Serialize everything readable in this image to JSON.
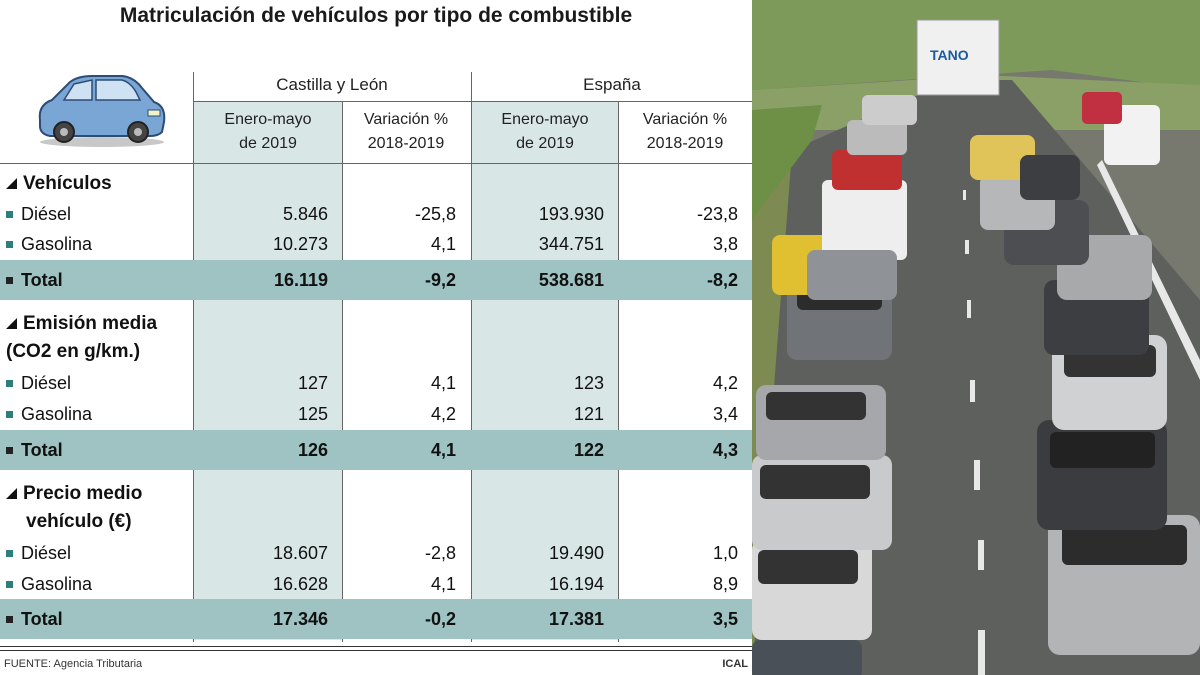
{
  "title": "Matriculación de vehículos por tipo de combustible",
  "groups": {
    "cyl": "Castilla y León",
    "esp": "España"
  },
  "subheaders": {
    "period_line1": "Enero-mayo",
    "period_line2": "de 2019",
    "var_line1": "Variación %",
    "var_line2": "2018-2019"
  },
  "sections": [
    {
      "title_line1": "Vehículos",
      "title_line2": "",
      "rows": [
        {
          "label": "Diésel",
          "cyl_val": "5.846",
          "cyl_var": "-25,8",
          "esp_val": "193.930",
          "esp_var": "-23,8"
        },
        {
          "label": "Gasolina",
          "cyl_val": "10.273",
          "cyl_var": "4,1",
          "esp_val": "344.751",
          "esp_var": "3,8"
        }
      ],
      "total": {
        "label": "Total",
        "cyl_val": "16.119",
        "cyl_var": "-9,2",
        "esp_val": "538.681",
        "esp_var": "-8,2"
      }
    },
    {
      "title_line1": "Emisión media",
      "title_line2": "(CO2 en g/km.)",
      "rows": [
        {
          "label": "Diésel",
          "cyl_val": "127",
          "cyl_var": "4,1",
          "esp_val": "123",
          "esp_var": "4,2"
        },
        {
          "label": "Gasolina",
          "cyl_val": "125",
          "cyl_var": "4,2",
          "esp_val": "121",
          "esp_var": "3,4"
        }
      ],
      "total": {
        "label": "Total",
        "cyl_val": "126",
        "cyl_var": "4,1",
        "esp_val": "122",
        "esp_var": "4,3"
      }
    },
    {
      "title_line1": "Precio medio",
      "title_line2": "vehículo (€)",
      "rows": [
        {
          "label": "Diésel",
          "cyl_val": "18.607",
          "cyl_var": "-2,8",
          "esp_val": "19.490",
          "esp_var": "1,0"
        },
        {
          "label": "Gasolina",
          "cyl_val": "16.628",
          "cyl_var": "4,1",
          "esp_val": "16.194",
          "esp_var": "8,9"
        }
      ],
      "total": {
        "label": "Total",
        "cyl_val": "17.346",
        "cyl_var": "-0,2",
        "esp_val": "17.381",
        "esp_var": "3,5"
      }
    }
  ],
  "footer": {
    "source": "FUENTE: Agencia Tributaria",
    "credit": "ICAL"
  },
  "colors": {
    "shade": "#d9e6e6",
    "total_row": "#9fc2c2",
    "bullet": "#2d7d7d",
    "car": "#7aa6d6"
  },
  "icons": {
    "car": "car-icon",
    "section": "triangle-icon"
  },
  "photo": {
    "truck_text": "TANO"
  }
}
